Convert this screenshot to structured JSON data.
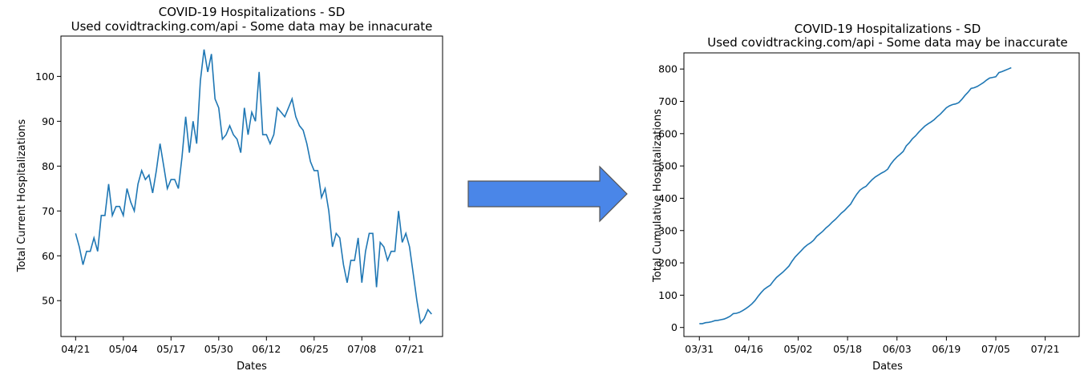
{
  "arrow": {
    "color": "#4a86e8",
    "stroke": "#555555",
    "icon": "right-arrow"
  },
  "chart_data": [
    {
      "type": "line",
      "title": "COVID-19 Hospitalizations - SD",
      "subtitle": "Used covidtracking.com/api - Some data may be innacurate",
      "xlabel": "Dates",
      "ylabel": "Total Current Hospitalizations",
      "color": "#1f77b4",
      "start_date": "04/21",
      "xtick_labels": [
        "04/21",
        "05/04",
        "05/17",
        "05/30",
        "06/12",
        "06/25",
        "07/08",
        "07/21"
      ],
      "yticks": [
        50,
        60,
        70,
        80,
        90,
        100
      ],
      "xlim": [
        -4,
        100
      ],
      "ylim": [
        42,
        109
      ],
      "values": [
        65,
        62,
        58,
        61,
        61,
        64,
        61,
        69,
        69,
        76,
        69,
        71,
        71,
        69,
        75,
        72,
        70,
        76,
        79,
        77,
        78,
        74,
        79,
        85,
        80,
        75,
        77,
        77,
        75,
        82,
        91,
        83,
        90,
        85,
        99,
        106,
        101,
        105,
        95,
        93,
        86,
        87,
        89,
        87,
        86,
        83,
        93,
        87,
        92,
        90,
        101,
        87,
        87,
        85,
        87,
        93,
        92,
        91,
        93,
        95,
        91,
        89,
        88,
        85,
        81,
        79,
        79,
        73,
        75,
        70,
        62,
        65,
        64,
        58,
        54,
        59,
        59,
        64,
        54,
        61,
        65,
        65,
        53,
        63,
        62,
        59,
        61,
        61,
        70,
        63,
        65,
        62,
        56,
        50,
        45,
        46,
        48,
        47
      ]
    },
    {
      "type": "line",
      "title": "COVID-19 Hospitalizations - SD",
      "subtitle": "Used covidtracking.com/api - Some data may be inaccurate",
      "xlabel": "Dates",
      "ylabel": "Total Cumulative Hospitalizations",
      "color": "#1f77b4",
      "start_date": "03/31",
      "xtick_labels": [
        "03/31",
        "04/16",
        "05/02",
        "05/18",
        "06/03",
        "06/19",
        "07/05",
        "07/21"
      ],
      "yticks": [
        0,
        100,
        200,
        300,
        400,
        500,
        600,
        700,
        800
      ],
      "xlim": [
        -5,
        123
      ],
      "ylim": [
        -28,
        850
      ],
      "points": [
        [
          0,
          12
        ],
        [
          1,
          12
        ],
        [
          2,
          15
        ],
        [
          3,
          16
        ],
        [
          4,
          18
        ],
        [
          5,
          21
        ],
        [
          6,
          22
        ],
        [
          7,
          24
        ],
        [
          8,
          26
        ],
        [
          9,
          30
        ],
        [
          10,
          35
        ],
        [
          11,
          43
        ],
        [
          12,
          44
        ],
        [
          13,
          47
        ],
        [
          14,
          52
        ],
        [
          15,
          58
        ],
        [
          16,
          65
        ],
        [
          17,
          73
        ],
        [
          18,
          83
        ],
        [
          19,
          96
        ],
        [
          20,
          108
        ],
        [
          21,
          118
        ],
        [
          22,
          125
        ],
        [
          23,
          131
        ],
        [
          24,
          144
        ],
        [
          25,
          155
        ],
        [
          26,
          163
        ],
        [
          27,
          171
        ],
        [
          28,
          180
        ],
        [
          29,
          190
        ],
        [
          30,
          205
        ],
        [
          31,
          218
        ],
        [
          32,
          228
        ],
        [
          33,
          238
        ],
        [
          34,
          248
        ],
        [
          35,
          256
        ],
        [
          36,
          262
        ],
        [
          37,
          270
        ],
        [
          38,
          282
        ],
        [
          39,
          290
        ],
        [
          40,
          298
        ],
        [
          41,
          308
        ],
        [
          42,
          316
        ],
        [
          43,
          326
        ],
        [
          44,
          334
        ],
        [
          45,
          344
        ],
        [
          46,
          354
        ],
        [
          47,
          362
        ],
        [
          48,
          372
        ],
        [
          49,
          382
        ],
        [
          50,
          398
        ],
        [
          51,
          413
        ],
        [
          52,
          425
        ],
        [
          53,
          432
        ],
        [
          54,
          437
        ],
        [
          55,
          448
        ],
        [
          56,
          458
        ],
        [
          57,
          466
        ],
        [
          58,
          472
        ],
        [
          59,
          478
        ],
        [
          60,
          483
        ],
        [
          61,
          490
        ],
        [
          62,
          506
        ],
        [
          63,
          518
        ],
        [
          64,
          528
        ],
        [
          65,
          536
        ],
        [
          66,
          545
        ],
        [
          67,
          562
        ],
        [
          68,
          572
        ],
        [
          69,
          584
        ],
        [
          70,
          593
        ],
        [
          71,
          604
        ],
        [
          72,
          614
        ],
        [
          73,
          623
        ],
        [
          74,
          630
        ],
        [
          75,
          636
        ],
        [
          76,
          643
        ],
        [
          77,
          652
        ],
        [
          78,
          660
        ],
        [
          79,
          670
        ],
        [
          80,
          680
        ],
        [
          81,
          686
        ],
        [
          82,
          690
        ],
        [
          83,
          692
        ],
        [
          84,
          696
        ],
        [
          85,
          706
        ],
        [
          86,
          718
        ],
        [
          87,
          728
        ],
        [
          88,
          740
        ],
        [
          89,
          742
        ],
        [
          90,
          746
        ],
        [
          91,
          752
        ],
        [
          92,
          758
        ],
        [
          93,
          766
        ],
        [
          94,
          772
        ],
        [
          95,
          774
        ],
        [
          96,
          776
        ],
        [
          97,
          789
        ],
        [
          98,
          792
        ],
        [
          99,
          796
        ],
        [
          100,
          800
        ],
        [
          101,
          804
        ]
      ],
      "xtick_positions": [
        0,
        16,
        32,
        48,
        64,
        80,
        96,
        112
      ]
    }
  ]
}
